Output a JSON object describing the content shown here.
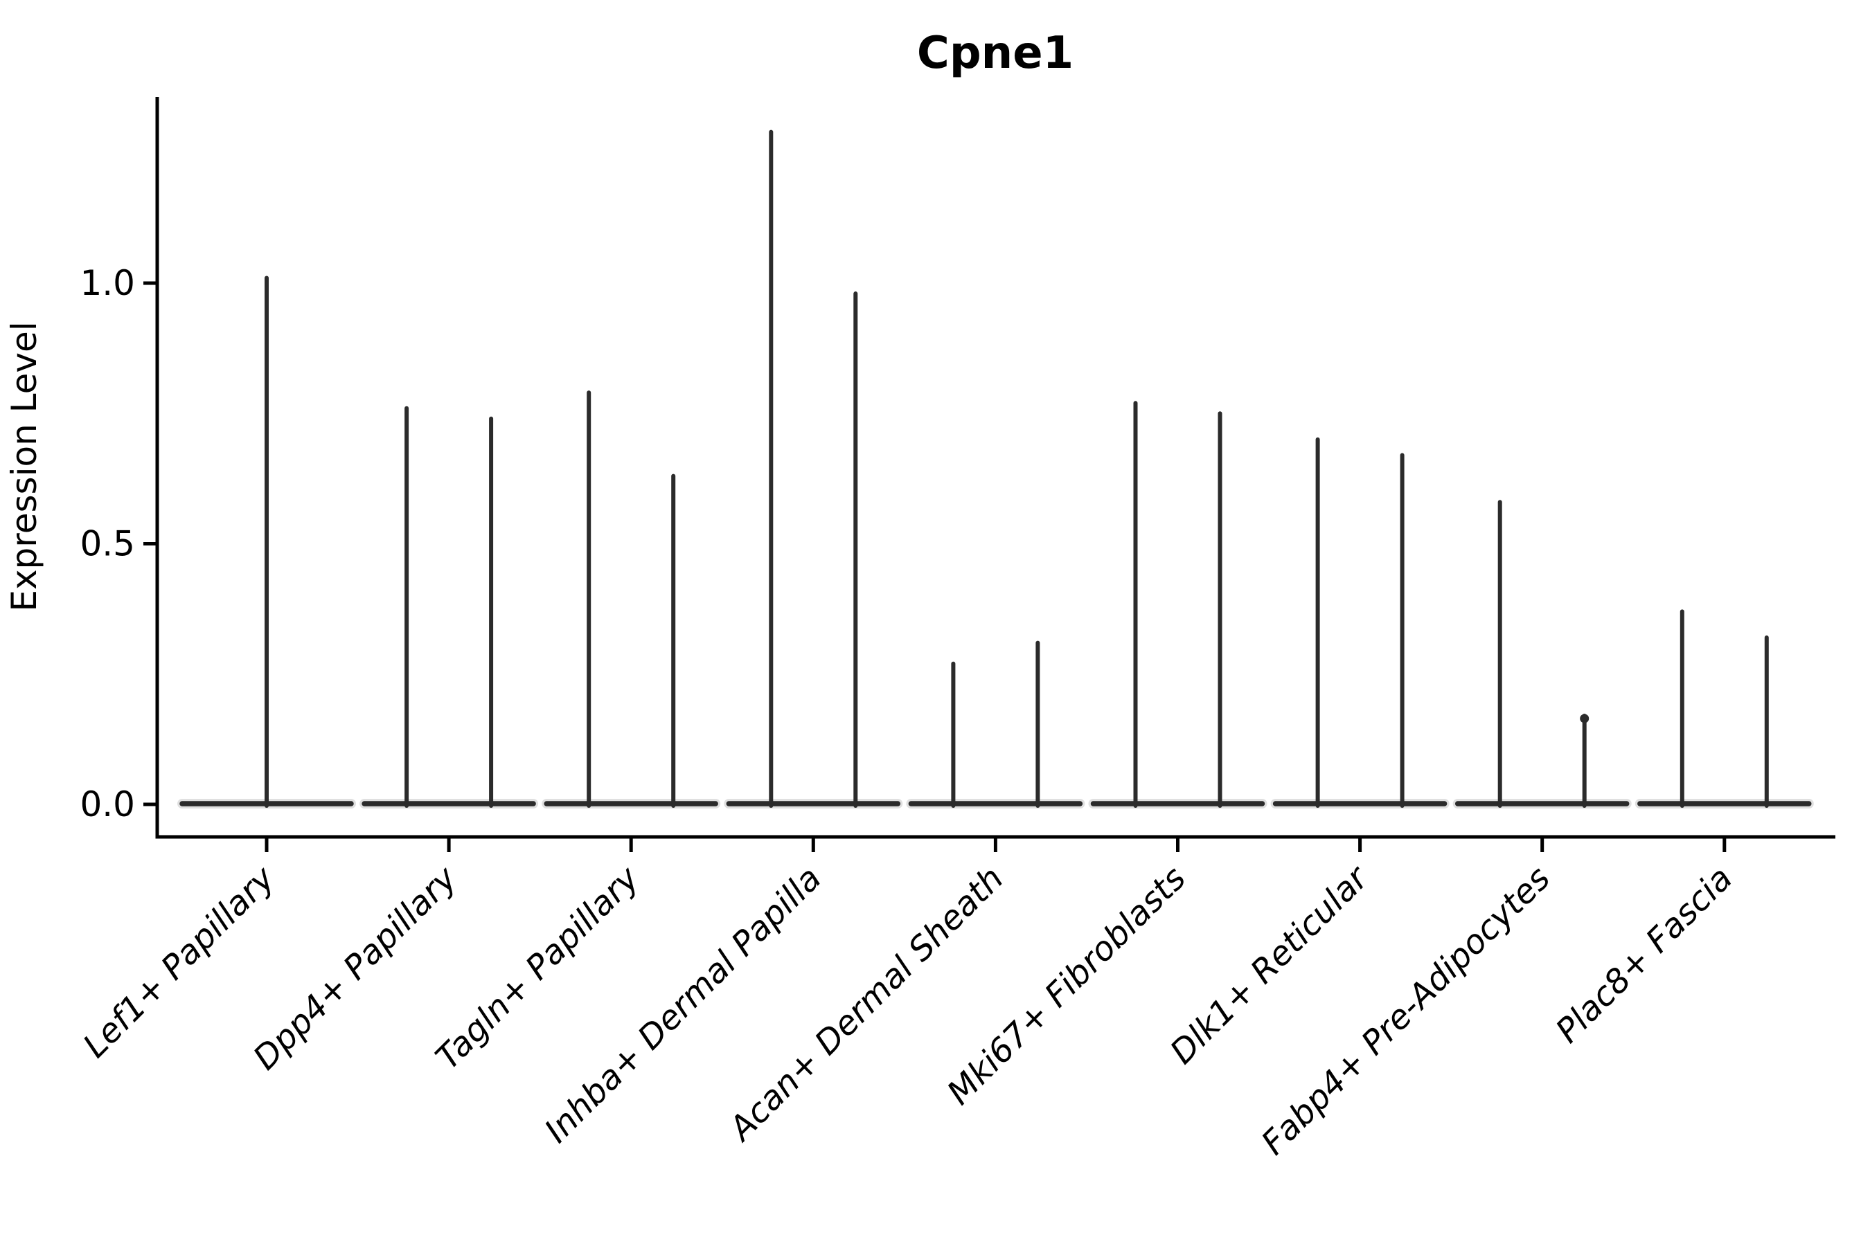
{
  "title": "Cpne1",
  "y_axis": {
    "label": "Expression Level",
    "tick_labels": [
      "0.0",
      "0.5",
      "1.0"
    ],
    "tick_values": [
      0.0,
      0.5,
      1.0
    ]
  },
  "x_axis": {
    "categories": [
      "Lef1+ Papillary",
      "Dpp4+ Papillary",
      "Tagln+ Papillary",
      "Inhba+ Dermal Papilla",
      "Acan+ Dermal Sheath",
      "Mki67+ Fibroblasts",
      "Dlk1+ Reticular",
      "Fabp4+ Pre-Adipocytes",
      "Plac8+ Fascia"
    ]
  },
  "chart_data": {
    "type": "violin",
    "title": "Cpne1",
    "xlabel": "",
    "ylabel": "Expression Level",
    "ylim": [
      -0.06,
      1.36
    ],
    "yticks": [
      0.0,
      0.5,
      1.0
    ],
    "grid": false,
    "legend": "none",
    "description": "Very narrow (needle-like) violins: bulk of density sits flat at 0 with a thin spike up to the maximum expression value. Each category shows two violins (left/right), except the first which has a single centered violin.",
    "categories": [
      "Lef1+ Papillary",
      "Dpp4+ Papillary",
      "Tagln+ Papillary",
      "Inhba+ Dermal Papilla",
      "Acan+ Dermal Sheath",
      "Mki67+ Fibroblasts",
      "Dlk1+ Reticular",
      "Fabp4+ Pre-Adipocytes",
      "Plac8+ Fascia"
    ],
    "violins": [
      {
        "category": "Lef1+ Papillary",
        "baseline": 0.0,
        "spikes": [
          {
            "position": "center",
            "max": 1.01
          }
        ]
      },
      {
        "category": "Dpp4+ Papillary",
        "baseline": 0.0,
        "spikes": [
          {
            "position": "left",
            "max": 0.76
          },
          {
            "position": "right",
            "max": 0.74
          }
        ]
      },
      {
        "category": "Tagln+ Papillary",
        "baseline": 0.0,
        "spikes": [
          {
            "position": "left",
            "max": 0.79
          },
          {
            "position": "right",
            "max": 0.63
          }
        ]
      },
      {
        "category": "Inhba+ Dermal Papilla",
        "baseline": 0.0,
        "spikes": [
          {
            "position": "left",
            "max": 1.29
          },
          {
            "position": "right",
            "max": 0.98
          }
        ]
      },
      {
        "category": "Acan+ Dermal Sheath",
        "baseline": 0.0,
        "spikes": [
          {
            "position": "left",
            "max": 0.27
          },
          {
            "position": "right",
            "max": 0.31
          }
        ]
      },
      {
        "category": "Mki67+ Fibroblasts",
        "baseline": 0.0,
        "spikes": [
          {
            "position": "left",
            "max": 0.77
          },
          {
            "position": "right",
            "max": 0.75
          }
        ]
      },
      {
        "category": "Dlk1+ Reticular",
        "baseline": 0.0,
        "spikes": [
          {
            "position": "left",
            "max": 0.7
          },
          {
            "position": "right",
            "max": 0.67
          }
        ]
      },
      {
        "category": "Fabp4+ Pre-Adipocytes",
        "baseline": 0.0,
        "spikes": [
          {
            "position": "left",
            "max": 0.58
          },
          {
            "position": "right",
            "max": 0.17,
            "knob": true
          }
        ]
      },
      {
        "category": "Plac8+ Fascia",
        "baseline": 0.0,
        "spikes": [
          {
            "position": "left",
            "max": 0.37
          },
          {
            "position": "right",
            "max": 0.32
          }
        ]
      }
    ],
    "colors": {
      "violin_line": "#2b2b2b",
      "violin_halo": "#9a9a9a",
      "axis": "#000000",
      "background": "#ffffff"
    }
  }
}
